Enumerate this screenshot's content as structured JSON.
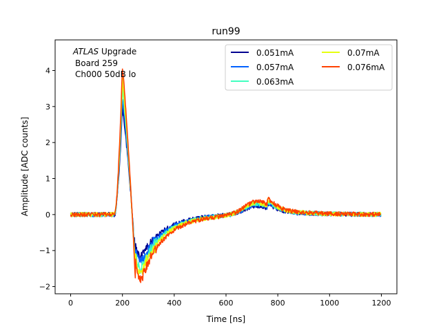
{
  "chart_data": {
    "type": "line",
    "title": "run99",
    "xlabel": "Time [ns]",
    "ylabel": "Amplitude [ADC counts]",
    "xlim": [
      -60,
      1260
    ],
    "ylim": [
      -2.2,
      4.85
    ],
    "xticks": [
      0,
      200,
      400,
      600,
      800,
      1000,
      1200
    ],
    "yticks": [
      -2,
      -1,
      0,
      1,
      2,
      3,
      4
    ],
    "grid": false,
    "legend": "top-right, 2 columns",
    "annotation": {
      "line1_italic": "ATLAS",
      "line1_rest": " Upgrade",
      "line2": "Board 259",
      "line3": "Ch000 50dB lo"
    },
    "series": [
      {
        "name": "0.051mA",
        "color": "#00008f",
        "peak": 3.0,
        "undershoot": -1.2,
        "bump": 0.25
      },
      {
        "name": "0.057mA",
        "color": "#0060ff",
        "peak": 3.25,
        "undershoot": -1.35,
        "bump": 0.28
      },
      {
        "name": "0.063mA",
        "color": "#40ffbf",
        "peak": 3.5,
        "undershoot": -1.5,
        "bump": 0.31
      },
      {
        "name": "0.07mA",
        "color": "#e6ff0d",
        "peak": 3.75,
        "undershoot": -1.65,
        "bump": 0.34
      },
      {
        "name": "0.076mA",
        "color": "#ff4000",
        "peak": 4.1,
        "undershoot": -1.85,
        "bump": 0.38
      }
    ]
  }
}
